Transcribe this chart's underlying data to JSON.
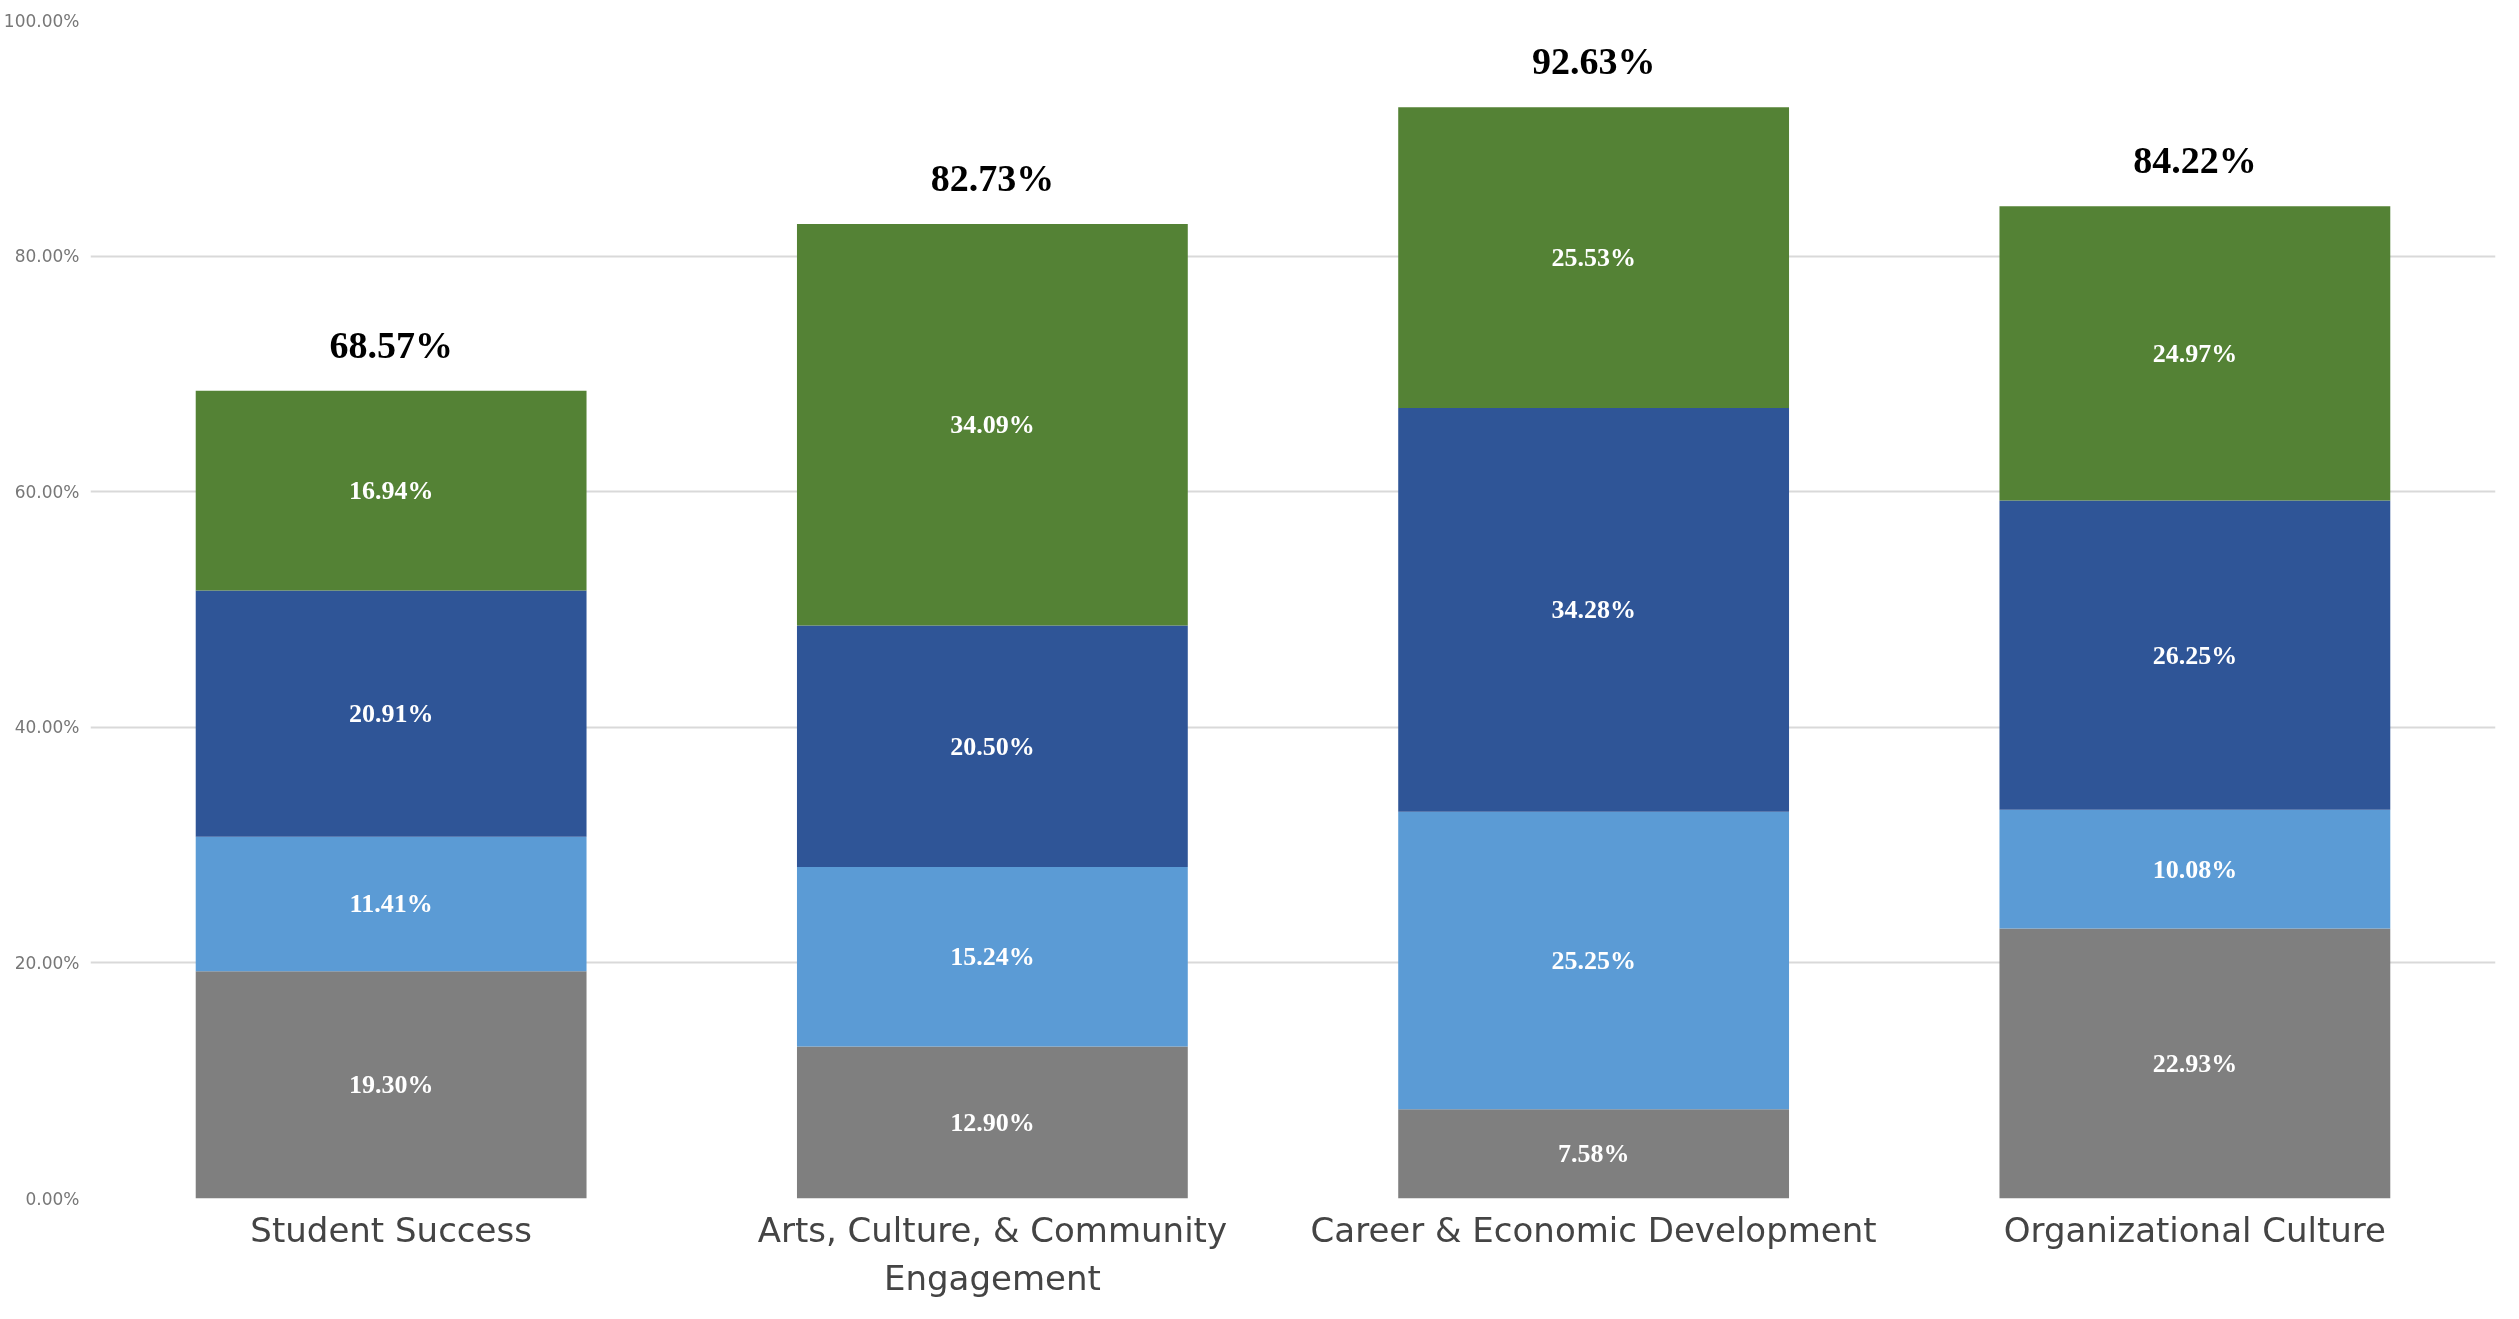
{
  "chart_data": {
    "type": "bar",
    "stacked": true,
    "categories": [
      "Student Success",
      "Arts, Culture, & Community Engagement",
      "Career & Economic Development",
      "Organizational Culture"
    ],
    "series": [
      {
        "color": "#7f7f7f",
        "values": [
          19.3,
          12.9,
          7.58,
          22.93
        ],
        "value_labels": [
          "19.30%",
          "12.90%",
          "7.58%",
          "22.93%"
        ]
      },
      {
        "color": "#5b9bd5",
        "values": [
          11.41,
          15.24,
          25.25,
          10.08
        ],
        "value_labels": [
          "11.41%",
          "15.24%",
          "25.25%",
          "10.08%"
        ]
      },
      {
        "color": "#2f5597",
        "values": [
          20.91,
          20.5,
          34.28,
          26.25
        ],
        "value_labels": [
          "20.91%",
          "20.50%",
          "34.28%",
          "26.25%"
        ]
      },
      {
        "color": "#548235",
        "values": [
          16.94,
          34.09,
          25.53,
          24.97
        ],
        "value_labels": [
          "16.94%",
          "34.09%",
          "25.53%",
          "24.97%"
        ]
      }
    ],
    "totals": [
      "68.57%",
      "82.73%",
      "92.63%",
      "84.22%"
    ],
    "ylim": [
      0,
      100
    ],
    "yticks": [
      {
        "value": 0,
        "label": "0.00%"
      },
      {
        "value": 20,
        "label": "20.00%"
      },
      {
        "value": 40,
        "label": "40.00%"
      },
      {
        "value": 60,
        "label": "60.00%"
      },
      {
        "value": 80,
        "label": "80.00%"
      },
      {
        "value": 100,
        "label": "100.00%"
      }
    ],
    "grid": "y"
  }
}
